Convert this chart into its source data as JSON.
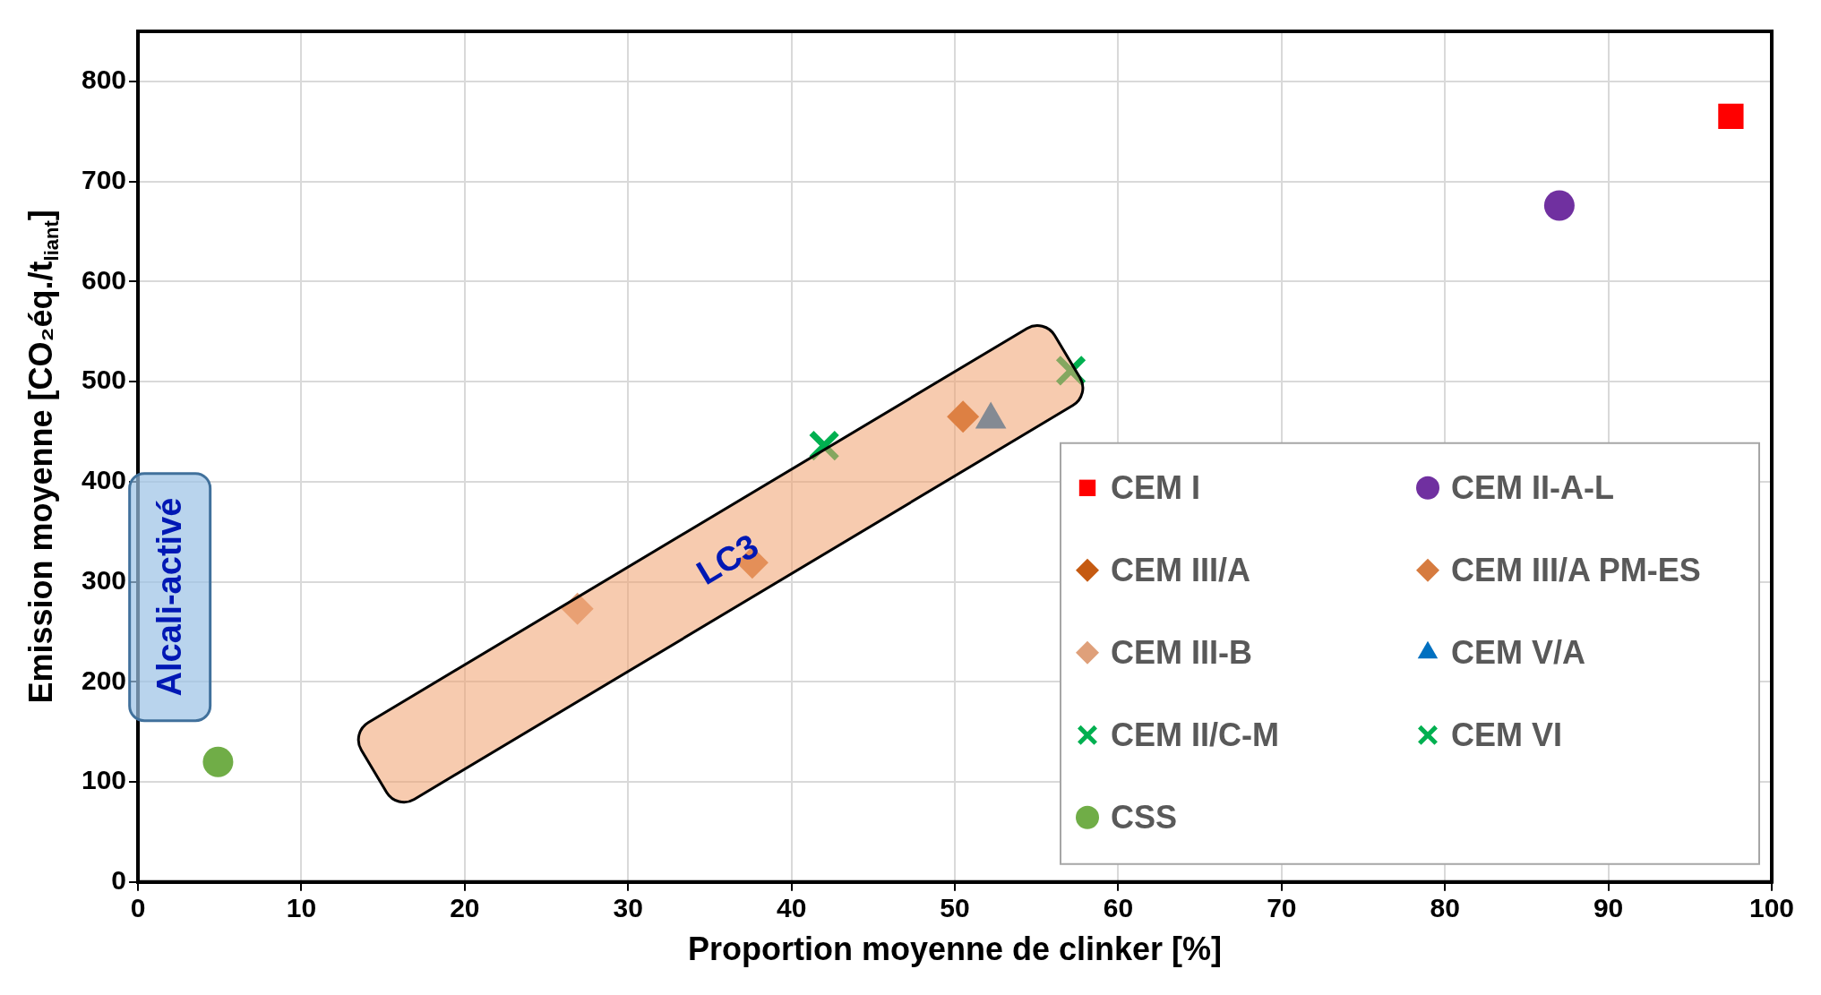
{
  "chart_data": {
    "type": "scatter",
    "xlabel": "Proportion moyenne de clinker [%]",
    "ylabel": "Emission moyenne [CO₂éq./t$_{liant}$]",
    "xlim": [
      0,
      100
    ],
    "xticks": [
      0,
      10,
      20,
      30,
      40,
      50,
      60,
      70,
      80,
      90,
      100
    ],
    "ylim": [
      0,
      850
    ],
    "yticks": [
      0,
      100,
      200,
      300,
      400,
      500,
      600,
      700,
      800
    ],
    "grid": true,
    "legend": "bottom right",
    "series": [
      {
        "name": "CEM I",
        "color": "#ff0000",
        "marker": "square",
        "x": [
          97.5
        ],
        "values": [
          765
        ]
      },
      {
        "name": "CEM II-A-L",
        "color": "#7030a0",
        "marker": "circle",
        "x": [
          87
        ],
        "values": [
          676
        ]
      },
      {
        "name": "CEM III/A",
        "color": "#c55a11",
        "marker": "diamond",
        "x": [
          50.5
        ],
        "values": [
          465
        ]
      },
      {
        "name": "CEM III/A PM-ES",
        "color": "#d67b3f",
        "marker": "diamond",
        "x": [
          37.6
        ],
        "values": [
          319
        ]
      },
      {
        "name": "CEM III-B",
        "color": "#dfa07a",
        "marker": "diamond",
        "x": [
          26.9
        ],
        "values": [
          273
        ]
      },
      {
        "name": "CEM V/A",
        "color": "#0070c0",
        "marker": "triangle",
        "x": [
          52.2
        ],
        "values": [
          462
        ]
      },
      {
        "name": "CEM II/C-M",
        "color": "#00b050",
        "marker": "cross",
        "x": [
          57.1
        ],
        "values": [
          511
        ]
      },
      {
        "name": "CEM VI",
        "color": "#00b050",
        "marker": "cross",
        "x": [
          42
        ],
        "values": [
          436
        ]
      },
      {
        "name": "CSS",
        "color": "#70ad47",
        "marker": "circle",
        "x": [
          4.9
        ],
        "values": [
          120
        ]
      }
    ],
    "annotations": [
      "Alcali-activé",
      "LC3"
    ]
  }
}
